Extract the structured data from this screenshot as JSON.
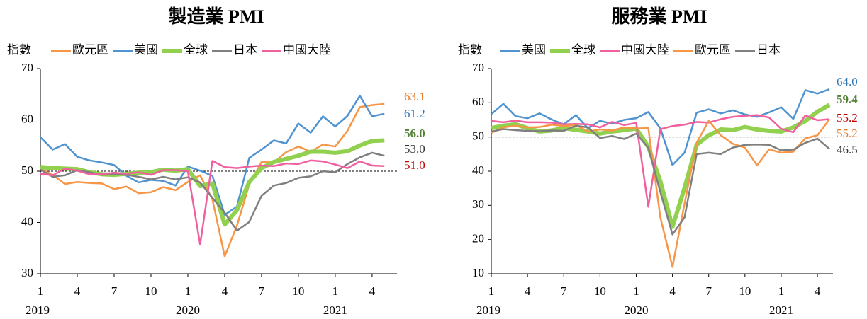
{
  "chart_data": [
    {
      "type": "line",
      "title": "製造業 PMI",
      "y_label": "指數",
      "categories": [
        "1",
        null,
        null,
        "4",
        null,
        null,
        "7",
        null,
        null,
        "10",
        null,
        null,
        "1",
        null,
        null,
        "4",
        null,
        null,
        "7",
        null,
        null,
        "10",
        null,
        null,
        "1",
        null,
        null,
        "4",
        null
      ],
      "years": [
        "2019",
        "2020",
        "2021"
      ],
      "ylim": [
        30,
        70
      ],
      "yticks": [
        30,
        40,
        50,
        60,
        70
      ],
      "reference_line": 50,
      "series": [
        {
          "name": "歐元區",
          "color": "#f79646",
          "label_color": "#e07b30",
          "values": [
            50.5,
            49.3,
            47.5,
            47.9,
            47.7,
            47.6,
            46.5,
            47.0,
            45.7,
            45.9,
            46.9,
            46.3,
            47.9,
            49.2,
            44.5,
            33.4,
            39.4,
            47.4,
            51.8,
            51.7,
            53.7,
            54.8,
            53.8,
            55.2,
            54.8,
            57.9,
            62.5,
            62.9,
            63.1
          ],
          "value_labels": [
            null,
            null,
            null,
            null,
            null,
            null,
            null,
            null,
            null,
            null,
            null,
            null,
            null,
            null,
            null,
            null,
            null,
            null,
            null,
            null,
            null,
            null,
            null,
            null,
            null,
            null,
            null,
            null,
            "63.1"
          ]
        },
        {
          "name": "美國",
          "color": "#4f93d0",
          "label_color": "#2e75b6",
          "values": [
            56.6,
            54.2,
            55.3,
            52.8,
            52.1,
            51.7,
            51.2,
            49.1,
            47.8,
            48.3,
            48.1,
            47.2,
            50.9,
            50.1,
            49.1,
            41.5,
            43.1,
            52.6,
            54.2,
            56.0,
            55.4,
            59.3,
            57.5,
            60.7,
            58.7,
            60.8,
            64.7,
            60.7,
            61.2
          ],
          "value_labels": [
            null,
            null,
            null,
            null,
            null,
            null,
            null,
            null,
            null,
            null,
            null,
            null,
            null,
            null,
            null,
            null,
            null,
            null,
            null,
            null,
            null,
            null,
            null,
            null,
            null,
            null,
            null,
            null,
            "61.2"
          ]
        },
        {
          "name": "全球",
          "color": "#92d050",
          "label_color": "#538135",
          "bold": true,
          "values": [
            50.8,
            50.6,
            50.5,
            50.4,
            49.8,
            49.4,
            49.3,
            49.5,
            49.7,
            49.8,
            50.3,
            50.1,
            50.4,
            47.1,
            47.6,
            39.6,
            42.4,
            47.9,
            50.6,
            51.8,
            52.4,
            53.0,
            53.8,
            53.8,
            53.6,
            53.9,
            55.0,
            55.9,
            56.0
          ],
          "value_labels": [
            null,
            null,
            null,
            null,
            null,
            null,
            null,
            null,
            null,
            null,
            null,
            null,
            null,
            null,
            null,
            null,
            null,
            null,
            null,
            null,
            null,
            null,
            null,
            null,
            null,
            null,
            null,
            null,
            "56.0"
          ]
        },
        {
          "name": "日本",
          "color": "#7f7f7f",
          "label_color": "#333333",
          "values": [
            50.3,
            48.9,
            49.2,
            50.2,
            49.8,
            49.3,
            49.4,
            49.3,
            48.9,
            48.4,
            48.9,
            48.4,
            48.8,
            47.8,
            44.8,
            41.9,
            38.4,
            40.1,
            45.2,
            47.2,
            47.7,
            48.7,
            49.0,
            50.0,
            49.8,
            51.4,
            52.7,
            53.6,
            53.0
          ],
          "value_labels": [
            null,
            null,
            null,
            null,
            null,
            null,
            null,
            null,
            null,
            null,
            null,
            null,
            null,
            null,
            null,
            null,
            null,
            null,
            null,
            null,
            null,
            null,
            null,
            null,
            null,
            null,
            null,
            null,
            "53.0"
          ]
        },
        {
          "name": "中國大陸",
          "color": "#f0609e",
          "label_color": "#c00000",
          "values": [
            49.5,
            49.2,
            50.5,
            50.1,
            49.4,
            49.4,
            49.7,
            49.5,
            49.8,
            49.3,
            50.2,
            50.2,
            50.0,
            35.7,
            52.0,
            50.8,
            50.6,
            50.9,
            51.1,
            51.0,
            51.5,
            51.4,
            52.1,
            51.9,
            51.3,
            50.6,
            51.9,
            51.1,
            51.0
          ],
          "value_labels": [
            null,
            null,
            null,
            null,
            null,
            null,
            null,
            null,
            null,
            null,
            null,
            null,
            null,
            null,
            null,
            null,
            null,
            null,
            null,
            null,
            null,
            null,
            null,
            null,
            null,
            null,
            null,
            null,
            "51.0"
          ]
        }
      ]
    },
    {
      "type": "line",
      "title": "服務業 PMI",
      "y_label": "指數",
      "categories": [
        "1",
        null,
        null,
        "4",
        null,
        null,
        "7",
        null,
        null,
        "10",
        null,
        null,
        "1",
        null,
        null,
        "4",
        null,
        null,
        "7",
        null,
        null,
        "10",
        null,
        null,
        "1",
        null,
        null,
        "4",
        null
      ],
      "years": [
        "2019",
        "2020",
        "2021"
      ],
      "ylim": [
        10,
        70
      ],
      "yticks": [
        10,
        20,
        30,
        40,
        50,
        60,
        70
      ],
      "reference_line": 50,
      "series": [
        {
          "name": "美國",
          "color": "#4f93d0",
          "label_color": "#2e75b6",
          "values": [
            56.7,
            59.7,
            56.1,
            55.5,
            56.9,
            55.1,
            53.7,
            56.4,
            52.6,
            54.7,
            53.9,
            55.0,
            55.5,
            57.3,
            52.5,
            41.8,
            45.4,
            57.1,
            58.1,
            56.9,
            57.8,
            56.6,
            55.9,
            57.2,
            58.7,
            55.3,
            63.7,
            62.7,
            64.0
          ],
          "value_labels": [
            null,
            null,
            null,
            null,
            null,
            null,
            null,
            null,
            null,
            null,
            null,
            null,
            null,
            null,
            null,
            null,
            null,
            null,
            null,
            null,
            null,
            null,
            null,
            null,
            null,
            null,
            null,
            null,
            "64.0"
          ]
        },
        {
          "name": "全球",
          "color": "#92d050",
          "label_color": "#538135",
          "bold": true,
          "values": [
            52.6,
            53.3,
            53.7,
            52.6,
            51.6,
            51.9,
            52.6,
            52.1,
            51.6,
            51.0,
            51.6,
            52.0,
            52.5,
            47.1,
            37.0,
            23.7,
            35.1,
            47.7,
            50.5,
            52.2,
            52.0,
            52.9,
            52.2,
            51.8,
            51.6,
            52.8,
            54.7,
            57.4,
            59.4
          ],
          "value_labels": [
            null,
            null,
            null,
            null,
            null,
            null,
            null,
            null,
            null,
            null,
            null,
            null,
            null,
            null,
            null,
            null,
            null,
            null,
            null,
            null,
            null,
            null,
            null,
            null,
            null,
            null,
            null,
            null,
            "59.4"
          ]
        },
        {
          "name": "中國大陸",
          "color": "#f0609e",
          "label_color": "#c00000",
          "values": [
            54.7,
            54.3,
            54.8,
            54.3,
            54.3,
            54.2,
            53.7,
            53.8,
            53.7,
            52.8,
            54.4,
            53.5,
            54.1,
            29.6,
            52.3,
            53.2,
            53.6,
            54.4,
            54.2,
            55.2,
            55.9,
            56.2,
            56.4,
            55.7,
            52.4,
            51.4,
            56.3,
            54.9,
            55.2
          ],
          "value_labels": [
            null,
            null,
            null,
            null,
            null,
            null,
            null,
            null,
            null,
            null,
            null,
            null,
            null,
            null,
            null,
            null,
            null,
            null,
            null,
            null,
            null,
            null,
            null,
            null,
            null,
            null,
            null,
            null,
            "55.2"
          ]
        },
        {
          "name": "歐元區",
          "color": "#f79646",
          "label_color": "#e07b30",
          "values": [
            51.2,
            52.8,
            53.3,
            52.8,
            52.9,
            53.6,
            53.2,
            53.5,
            51.6,
            52.2,
            51.9,
            52.8,
            52.5,
            52.6,
            26.4,
            12.0,
            30.5,
            48.3,
            54.7,
            50.5,
            48.0,
            46.9,
            41.7,
            46.4,
            45.4,
            45.7,
            49.6,
            50.5,
            55.2
          ],
          "value_labels": [
            null,
            null,
            null,
            null,
            null,
            null,
            null,
            null,
            null,
            null,
            null,
            null,
            null,
            null,
            null,
            null,
            null,
            null,
            null,
            null,
            null,
            null,
            null,
            null,
            null,
            null,
            null,
            null,
            "55.2"
          ]
        },
        {
          "name": "日本",
          "color": "#7f7f7f",
          "label_color": "#333333",
          "values": [
            51.6,
            52.3,
            52.0,
            51.8,
            51.7,
            51.9,
            51.8,
            53.3,
            52.8,
            49.7,
            50.3,
            49.4,
            51.0,
            46.8,
            33.8,
            21.5,
            26.5,
            45.0,
            45.4,
            45.0,
            46.9,
            47.7,
            47.8,
            47.7,
            46.1,
            46.3,
            48.3,
            49.5,
            46.5
          ],
          "value_labels": [
            null,
            null,
            null,
            null,
            null,
            null,
            null,
            null,
            null,
            null,
            null,
            null,
            null,
            null,
            null,
            null,
            null,
            null,
            null,
            null,
            null,
            null,
            null,
            null,
            null,
            null,
            null,
            null,
            "46.5"
          ]
        }
      ]
    }
  ]
}
